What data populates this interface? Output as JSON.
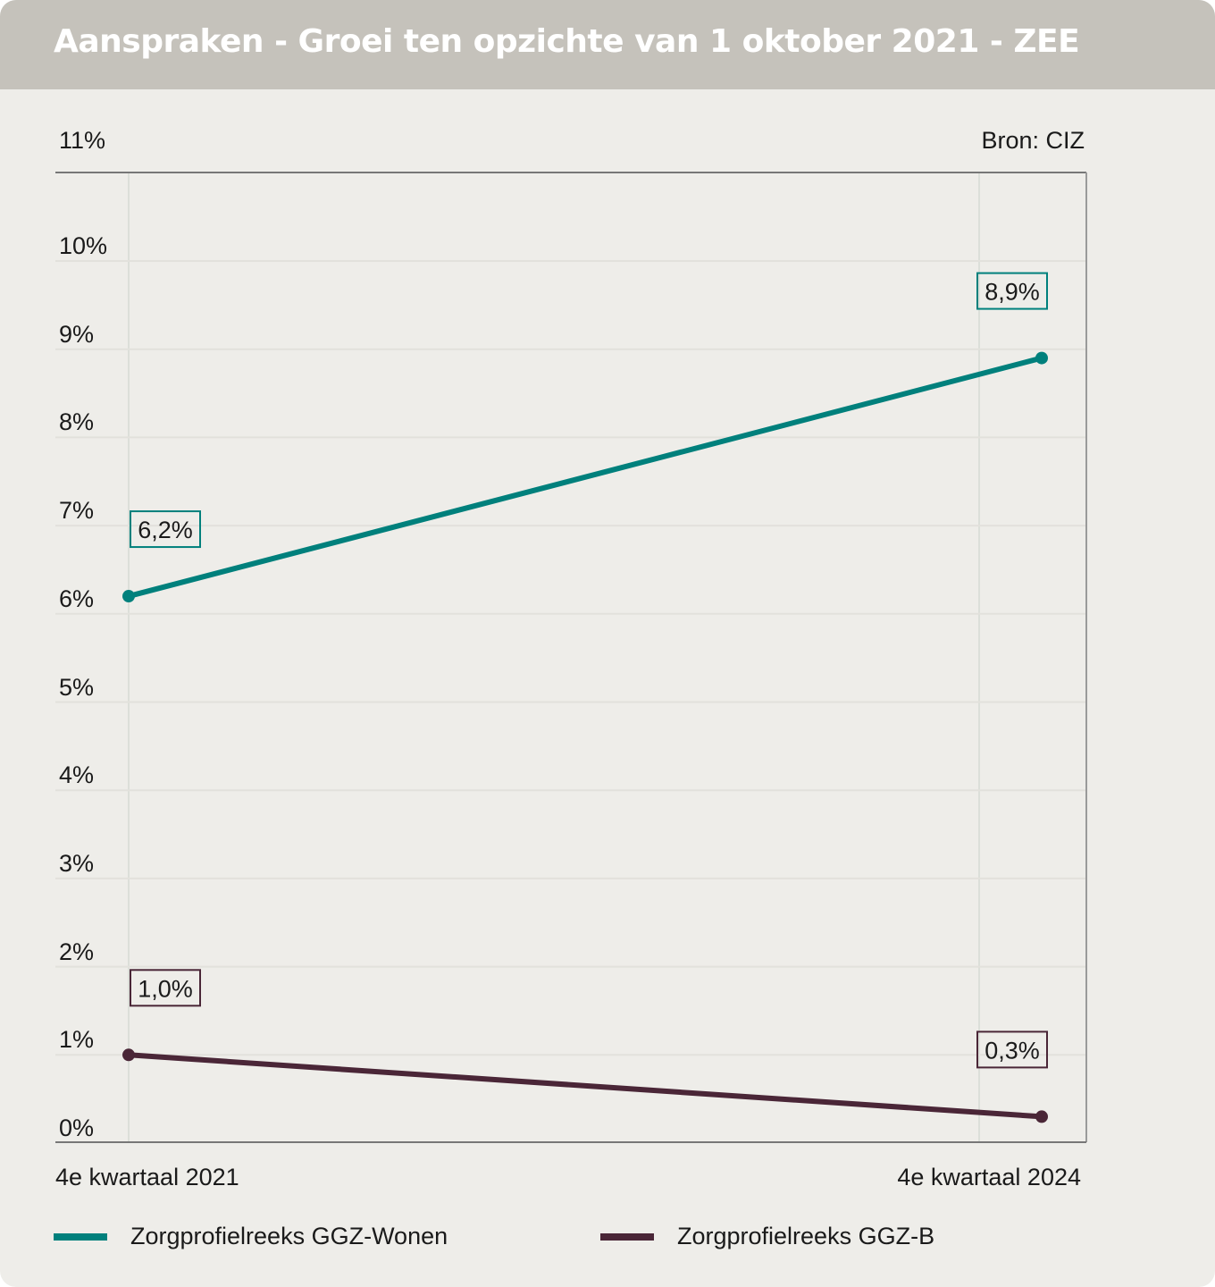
{
  "title": "Aanspraken - Groei ten opzichte van 1 oktober 2021 - ZEE",
  "source": "Bron: CIZ",
  "colors": {
    "ggz_wonen": "#00807c",
    "ggz_b": "#4a2637",
    "background": "#eeede9",
    "header": "#c5c2bb"
  },
  "chart_data": {
    "type": "line",
    "categories": [
      "4e kwartaal 2021",
      "4e kwartaal 2024"
    ],
    "series": [
      {
        "name": "Zorgprofielreeks GGZ-Wonen",
        "values": [
          6.2,
          8.9
        ],
        "labels": [
          "6,2%",
          "8,9%"
        ]
      },
      {
        "name": "Zorgprofielreeks GGZ-B",
        "values": [
          1.0,
          0.3
        ],
        "labels": [
          "1,0%",
          "0,3%"
        ]
      }
    ],
    "ylim": [
      0,
      11
    ],
    "yticks": [
      "0%",
      "1%",
      "2%",
      "3%",
      "4%",
      "5%",
      "6%",
      "7%",
      "8%",
      "9%",
      "10%",
      "11%"
    ],
    "xlabel": "",
    "ylabel": "",
    "grid": true,
    "legend_position": "bottom"
  }
}
